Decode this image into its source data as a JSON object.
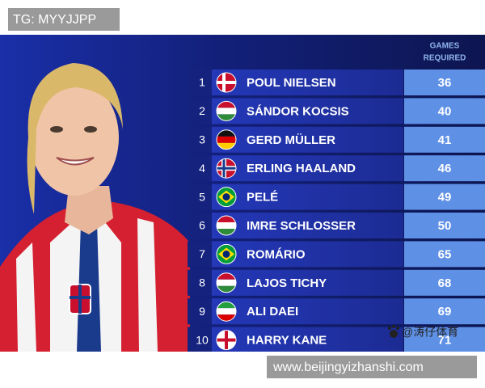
{
  "label": "TG: MYYJJPP",
  "table": {
    "header": [
      "GAMES",
      "REQUIRED"
    ],
    "rows": [
      [
        1,
        "POUL NIELSEN",
        36
      ],
      [
        2,
        "SÁNDOR KOCSIS",
        40
      ],
      [
        3,
        "GERD MÜLLER",
        41
      ],
      [
        4,
        "ERLING HAALAND",
        46
      ],
      [
        5,
        "PELÉ",
        49
      ],
      [
        6,
        "IMRE SCHLOSSER",
        50
      ],
      [
        7,
        "ROMÁRIO",
        65
      ],
      [
        8,
        "LAJOS TICHY",
        68
      ],
      [
        9,
        "ALI DAEI",
        69
      ],
      [
        10,
        "HARRY KANE",
        71
      ]
    ]
  },
  "watermark": "@涛仔体育",
  "footer": "www.beijingyizhanshi.com"
}
